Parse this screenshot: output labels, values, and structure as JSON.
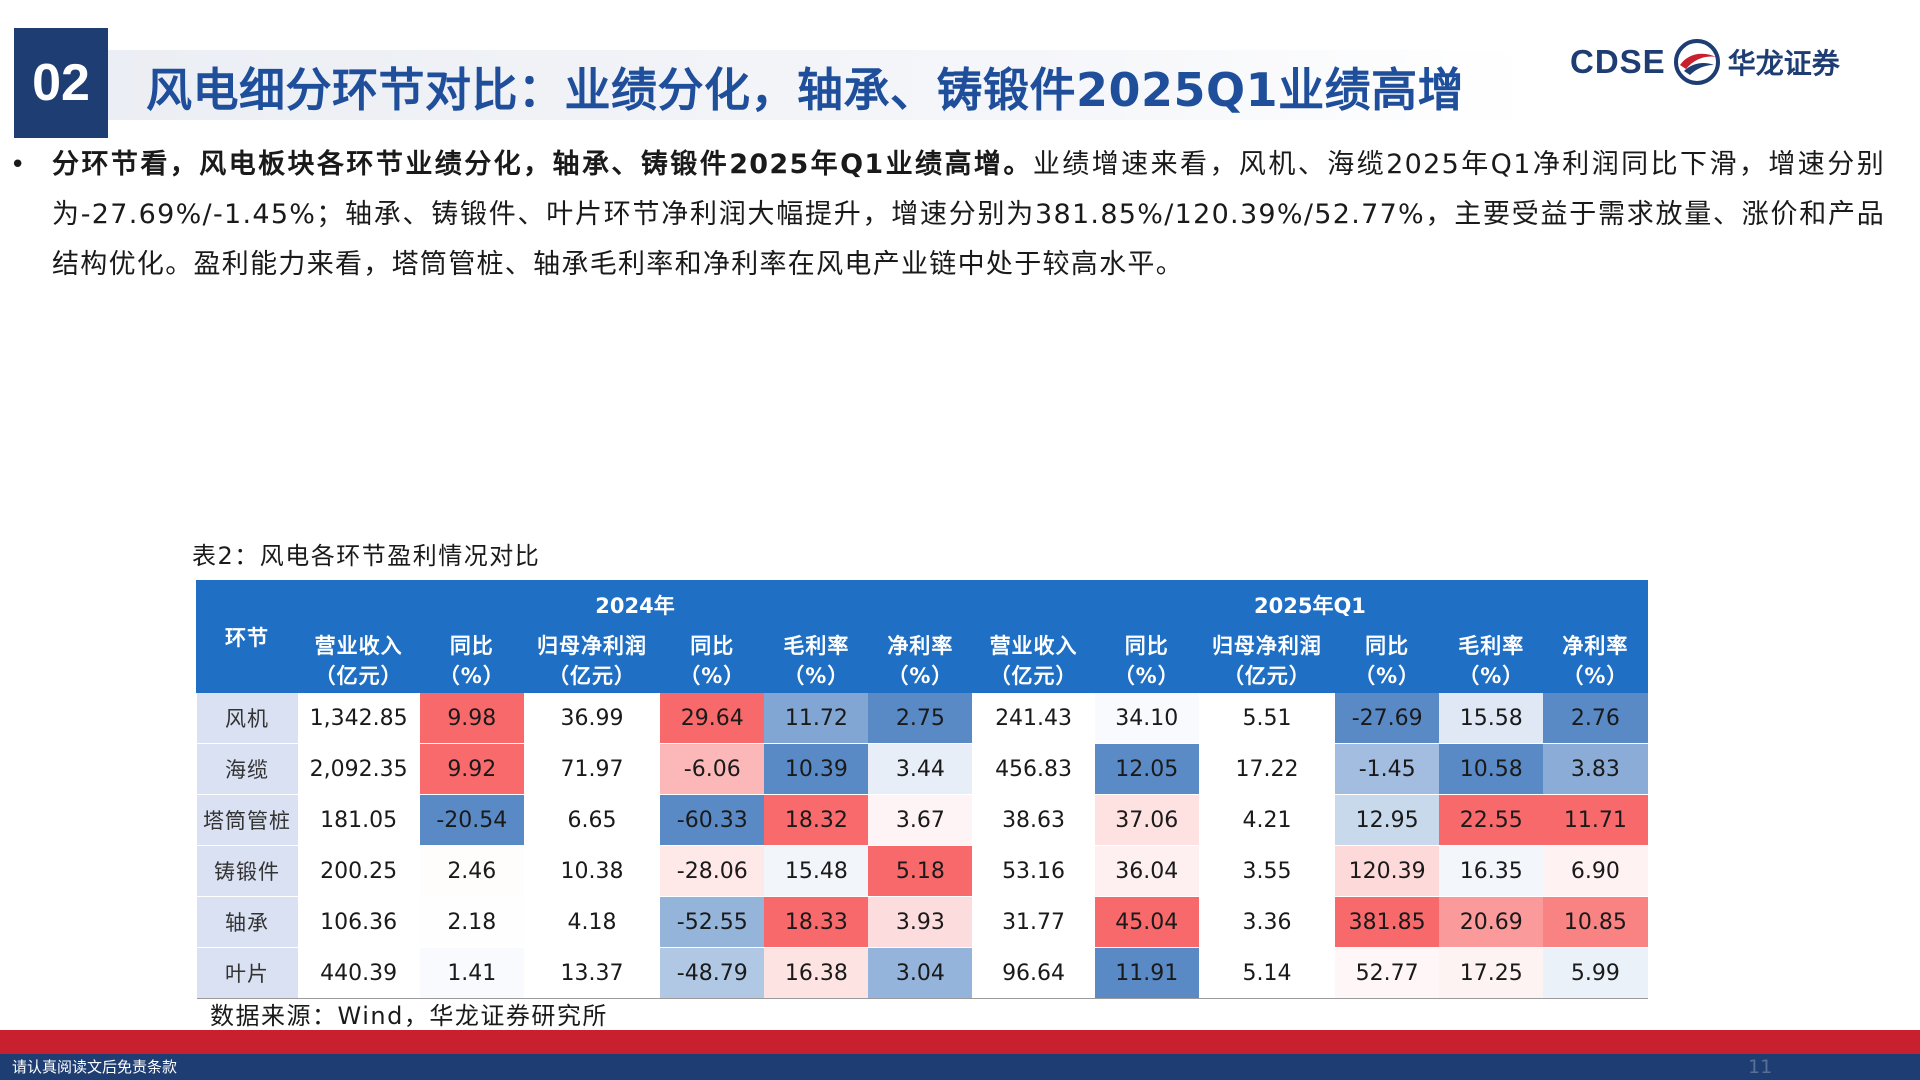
{
  "header": {
    "section_number": "02",
    "title": "风电细分环节对比：业绩分化，轴承、铸锻件2025Q1业绩高增",
    "logo_en": "CDSE",
    "logo_cn": "华龙证券",
    "logo_icon": "eagle-swoosh-icon"
  },
  "bullet": {
    "bold_text": "分环节看，风电板块各环节业绩分化，轴承、铸锻件2025年Q1业绩高增。",
    "text": "业绩增速来看，风机、海缆2025年Q1净利润同比下滑，增速分别为-27.69%/-1.45%；轴承、铸锻件、叶片环节净利润大幅提升，增速分别为381.85%/120.39%/52.77%，主要受益于需求放量、涨价和产品结构优化。盈利能力来看，塔筒管桩、轴承毛利率和净利率在风电产业链中处于较高水平。"
  },
  "table": {
    "caption": "表2：风电各环节盈利情况对比",
    "segment_header": "环节",
    "period_2024": "2024年",
    "period_2025q1": "2025年Q1",
    "col_headers": [
      "营业收入\n（亿元）",
      "同比\n（%）",
      "归母净利润\n（亿元）",
      "同比\n（%）",
      "毛利率\n（%）",
      "净利率\n（%）",
      "营业收入\n（亿元）",
      "同比\n（%）",
      "归母净利润\n（亿元）",
      "同比\n（%）",
      "毛利率\n（%）",
      "净利率\n（%）"
    ],
    "rows": [
      {
        "segment": "风机",
        "values": [
          "1,342.85",
          "9.98",
          "36.99",
          "29.64",
          "11.72",
          "2.75",
          "241.43",
          "34.10",
          "5.51",
          "-27.69",
          "15.58",
          "2.76"
        ]
      },
      {
        "segment": "海缆",
        "values": [
          "2,092.35",
          "9.92",
          "71.97",
          "-6.06",
          "10.39",
          "3.44",
          "456.83",
          "12.05",
          "17.22",
          "-1.45",
          "10.58",
          "3.83"
        ]
      },
      {
        "segment": "塔筒管桩",
        "values": [
          "181.05",
          "-20.54",
          "6.65",
          "-60.33",
          "18.32",
          "3.67",
          "38.63",
          "37.06",
          "4.21",
          "12.95",
          "22.55",
          "11.71"
        ]
      },
      {
        "segment": "铸锻件",
        "values": [
          "200.25",
          "2.46",
          "10.38",
          "-28.06",
          "15.48",
          "5.18",
          "53.16",
          "36.04",
          "3.55",
          "120.39",
          "16.35",
          "6.90"
        ]
      },
      {
        "segment": "轴承",
        "values": [
          "106.36",
          "2.18",
          "4.18",
          "-52.55",
          "18.33",
          "3.93",
          "31.77",
          "45.04",
          "3.36",
          "381.85",
          "20.69",
          "10.85"
        ]
      },
      {
        "segment": "叶片",
        "values": [
          "440.39",
          "1.41",
          "13.37",
          "-48.79",
          "16.38",
          "3.04",
          "96.64",
          "11.91",
          "5.14",
          "52.77",
          "17.25",
          "5.99"
        ]
      }
    ],
    "heatmap_colors": {
      "high": "#f8696b",
      "mid": "#ffffff",
      "low": "#5a8ac6"
    },
    "source": "数据来源：Wind，华龙证券研究所"
  },
  "footer": {
    "disclaimer": "请认真阅读文后免责条款",
    "page_number": "11"
  }
}
